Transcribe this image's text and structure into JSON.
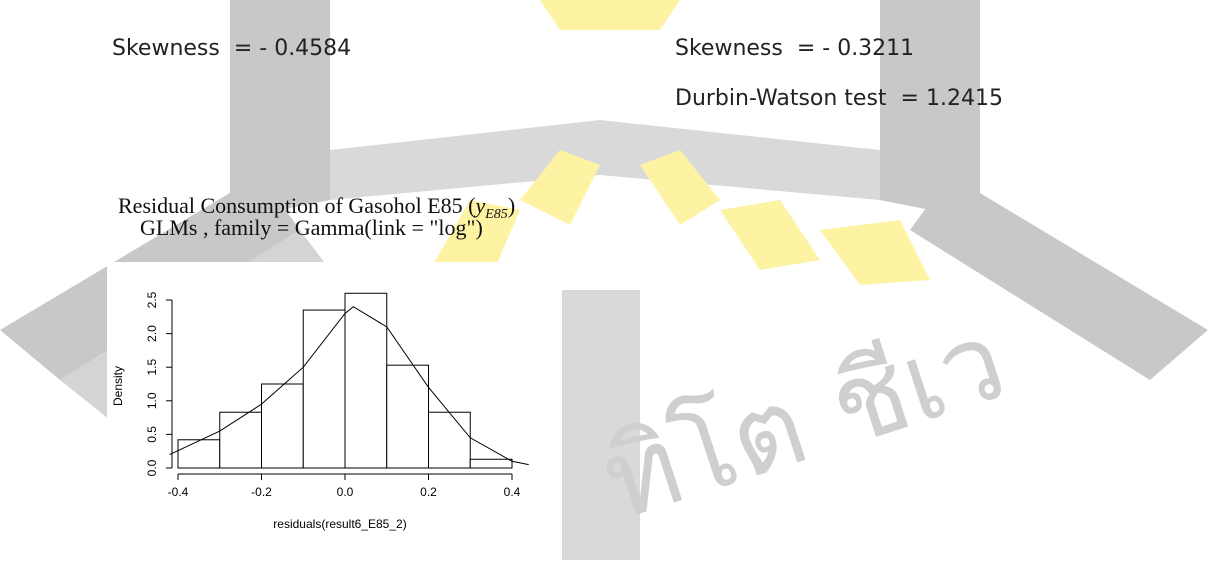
{
  "texts": {
    "left_skewness": "Skewness  = - 0.4584",
    "right_skewness": "Skewness  = - 0.3211",
    "durbin_watson": "Durbin-Watson test  = 1.2415"
  },
  "watermark": {
    "text": "ทิโต ชีเว"
  },
  "figure": {
    "caption_prefix": "Residual Consumption of Gasohol E85 (",
    "caption_var": "y",
    "caption_sub": "E85",
    "caption_suffix": ")",
    "caption_line2": "GLMs , family = Gamma(link = \"log\")"
  },
  "chart_data": {
    "type": "histogram",
    "y_label": "Density",
    "x_label": "residuals(result6_E85_2)",
    "bins": [
      -0.4,
      -0.3,
      -0.2,
      -0.1,
      0.0,
      0.1,
      0.2,
      0.3,
      0.4
    ],
    "values": [
      0.42,
      0.83,
      1.25,
      2.35,
      2.6,
      1.53,
      0.83,
      0.13
    ],
    "density_curve": {
      "x": [
        -0.42,
        -0.3,
        -0.2,
        -0.1,
        0.0,
        0.02,
        0.1,
        0.2,
        0.3,
        0.4,
        0.44
      ],
      "y": [
        0.2,
        0.55,
        0.95,
        1.5,
        2.3,
        2.4,
        2.1,
        1.2,
        0.45,
        0.1,
        0.05
      ]
    },
    "xlim": [
      -0.4,
      0.4
    ],
    "ylim": [
      0,
      2.5
    ],
    "xticks": [
      -0.4,
      -0.2,
      {
        "value": 0,
        "label": "0.0"
      },
      0.2,
      0.4
    ],
    "yticks": [
      {
        "value": 0,
        "label": "0.0"
      },
      0.5,
      {
        "value": 1,
        "label": "1.0"
      },
      1.5,
      {
        "value": 2,
        "label": "2.0"
      },
      2.5
    ],
    "color": "#ffffff"
  }
}
